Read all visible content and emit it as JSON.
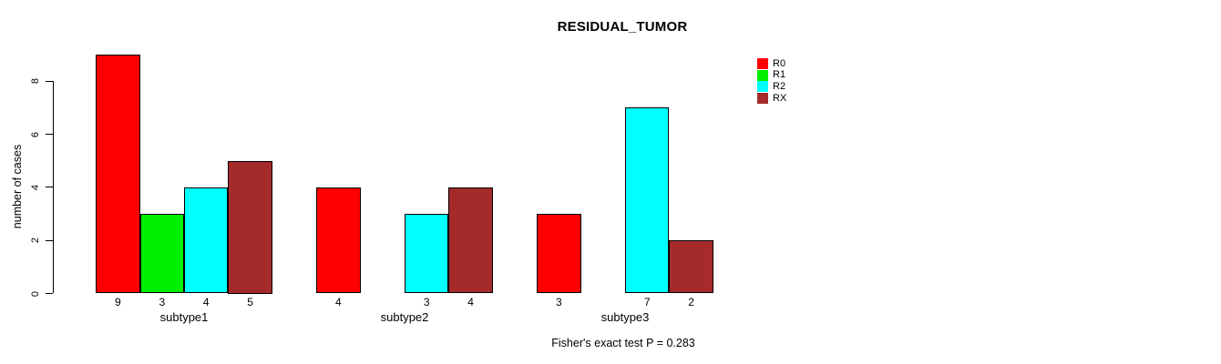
{
  "title": "RESIDUAL_TUMOR",
  "y_axis": {
    "label": "number of cases",
    "ticks": [
      "0",
      "2",
      "4",
      "6",
      "8"
    ]
  },
  "footer": "Fisher's exact test P = 0.283",
  "legend": {
    "items": [
      {
        "label": "R0",
        "color": "#ff0000"
      },
      {
        "label": "R1",
        "color": "#00ee00"
      },
      {
        "label": "R2",
        "color": "#00ffff"
      },
      {
        "label": "RX",
        "color": "#a52a2a"
      }
    ]
  },
  "chart_data": {
    "type": "bar",
    "title": "RESIDUAL_TUMOR",
    "xlabel": "",
    "ylabel": "number of cases",
    "categories": [
      "subtype1",
      "subtype2",
      "subtype3"
    ],
    "series": [
      {
        "name": "R0",
        "color": "#ff0000",
        "values": [
          9,
          4,
          3
        ]
      },
      {
        "name": "R1",
        "color": "#00ee00",
        "values": [
          3,
          0,
          0
        ]
      },
      {
        "name": "R2",
        "color": "#00ffff",
        "values": [
          4,
          3,
          7
        ]
      },
      {
        "name": "RX",
        "color": "#a52a2a",
        "values": [
          5,
          4,
          2
        ]
      }
    ],
    "yticks": [
      0,
      2,
      4,
      6,
      8
    ],
    "ylim": [
      0,
      9
    ],
    "bar_value_labels": true,
    "zero_bars_hidden": true,
    "grid": false,
    "legend_position": "top-right",
    "annotation": "Fisher's exact test P = 0.283"
  }
}
